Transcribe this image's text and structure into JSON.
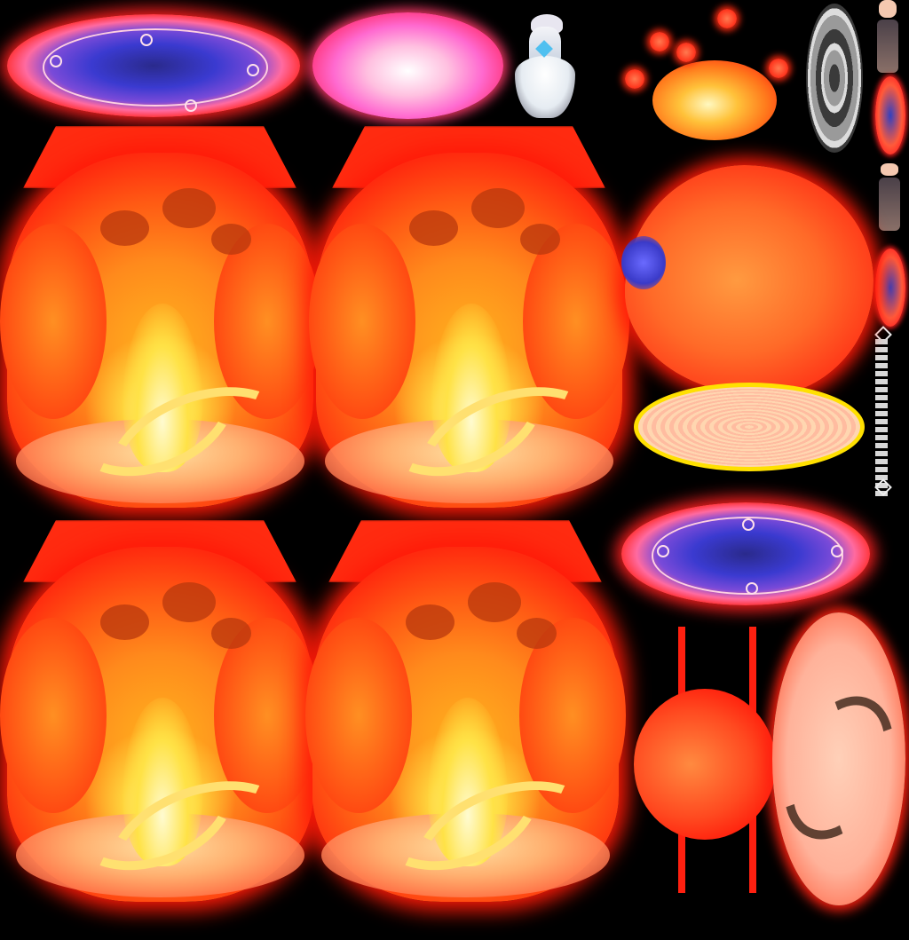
{
  "sheet": {
    "sprites": [
      {
        "name": "magic-circle-top-left"
      },
      {
        "name": "pink-slash-effect"
      },
      {
        "name": "character-dress"
      },
      {
        "name": "fire-burst-small"
      },
      {
        "name": "grey-disc"
      },
      {
        "name": "character-portrait-small"
      },
      {
        "name": "fire-column-1"
      },
      {
        "name": "fire-column-2"
      },
      {
        "name": "puffy-fire-cloud"
      },
      {
        "name": "fire-column-3"
      },
      {
        "name": "fire-column-4"
      },
      {
        "name": "magic-circle-right"
      },
      {
        "name": "side-flare"
      },
      {
        "name": "swirl-disc"
      },
      {
        "name": "chain"
      }
    ],
    "colors": {
      "background": "#000000",
      "fire_red": "#ff2010",
      "fire_orange": "#ff8a1c",
      "fire_yellow": "#ffe246",
      "magic_blue": "#3a3ad0"
    }
  }
}
